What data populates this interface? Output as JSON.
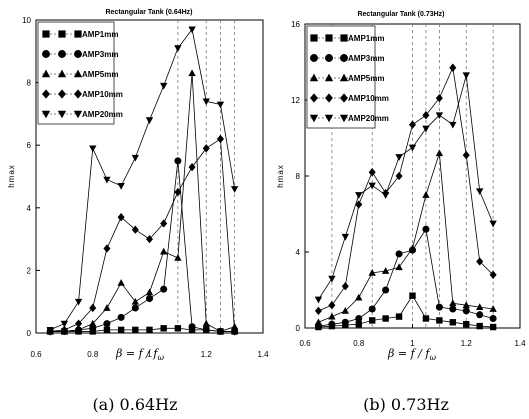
{
  "figure": {
    "captions": [
      "(a)  0.64Hz",
      "(b)  0.73Hz"
    ]
  },
  "chart_data": [
    {
      "type": "line",
      "title": "Rectangular Tank (0.64Hz)",
      "xlabel": "β = f / f",
      "xlabel_sub": "ω",
      "ylabel": "hmax",
      "xlim": [
        0.6,
        1.4
      ],
      "ylim": [
        0,
        10
      ],
      "xticks": [
        "0.6",
        "0.8",
        "1",
        "1.2",
        "1.4"
      ],
      "yticks": [
        "0",
        "2",
        "4",
        "6",
        "8",
        "10"
      ],
      "x": [
        0.65,
        0.7,
        0.75,
        0.8,
        0.85,
        0.9,
        0.95,
        1.0,
        1.05,
        1.1,
        1.15,
        1.2,
        1.25,
        1.3
      ],
      "legend_position": "top-left",
      "series": [
        {
          "name": "AMP1mm",
          "marker": "square",
          "values": [
            0.05,
            0.05,
            0.05,
            0.05,
            0.1,
            0.1,
            0.1,
            0.1,
            0.15,
            0.15,
            0.1,
            0.1,
            0.05,
            0.05
          ]
        },
        {
          "name": "AMP3mm",
          "marker": "circle",
          "values": [
            0.05,
            0.05,
            0.1,
            0.15,
            0.3,
            0.5,
            0.8,
            1.1,
            1.4,
            5.5,
            0.2,
            0.1,
            0.05,
            0.05
          ]
        },
        {
          "name": "AMP5mm",
          "marker": "triangle-up",
          "values": [
            0.05,
            0.05,
            0.1,
            0.3,
            0.8,
            1.6,
            1.0,
            1.3,
            2.6,
            2.4,
            8.3,
            0.3,
            0.05,
            0.2
          ]
        },
        {
          "name": "AMP10mm",
          "marker": "diamond",
          "values": [
            0.05,
            0.1,
            0.3,
            0.8,
            2.7,
            3.7,
            3.3,
            3.0,
            3.5,
            4.5,
            5.3,
            5.9,
            6.2,
            0.05
          ]
        },
        {
          "name": "AMP20mm",
          "marker": "triangle-down",
          "values": [
            0.1,
            0.3,
            1.0,
            5.9,
            4.9,
            4.7,
            5.6,
            6.8,
            7.9,
            9.1,
            9.7,
            7.4,
            7.3,
            4.6
          ]
        }
      ],
      "vlines": [
        1.1,
        1.2,
        1.25,
        1.3
      ]
    },
    {
      "type": "line",
      "title": "Rectangular Tank (0.73Hz)",
      "xlabel": "β = f / f",
      "xlabel_sub": "ω",
      "ylabel": "hmax",
      "xlim": [
        0.6,
        1.4
      ],
      "ylim": [
        0,
        16
      ],
      "xticks": [
        "0.6",
        "0.8",
        "1",
        "1.2",
        "1.4"
      ],
      "yticks": [
        "0",
        "4",
        "8",
        "12",
        "16"
      ],
      "x": [
        0.65,
        0.7,
        0.75,
        0.8,
        0.85,
        0.9,
        0.95,
        1.0,
        1.05,
        1.1,
        1.15,
        1.2,
        1.25,
        1.3
      ],
      "legend_position": "top-left",
      "series": [
        {
          "name": "AMP1mm",
          "marker": "square",
          "values": [
            0.05,
            0.1,
            0.15,
            0.2,
            0.4,
            0.5,
            0.6,
            1.7,
            0.5,
            0.4,
            0.3,
            0.2,
            0.1,
            0.05
          ]
        },
        {
          "name": "AMP3mm",
          "marker": "circle",
          "values": [
            0.1,
            0.2,
            0.3,
            0.5,
            1.0,
            2.0,
            3.9,
            4.1,
            5.2,
            1.1,
            1.0,
            0.9,
            0.7,
            0.5
          ]
        },
        {
          "name": "AMP5mm",
          "marker": "triangle-up",
          "values": [
            0.3,
            0.6,
            0.9,
            1.6,
            2.9,
            3.0,
            3.2,
            4.2,
            7.0,
            9.2,
            1.3,
            1.2,
            1.1,
            1.0
          ]
        },
        {
          "name": "AMP10mm",
          "marker": "diamond",
          "values": [
            0.9,
            1.2,
            2.2,
            6.5,
            8.2,
            7.1,
            8.0,
            10.7,
            11.2,
            12.1,
            13.7,
            9.1,
            3.5,
            2.8
          ]
        },
        {
          "name": "AMP20mm",
          "marker": "triangle-down",
          "values": [
            1.5,
            2.6,
            4.8,
            7.0,
            7.5,
            7.0,
            9.0,
            9.5,
            10.5,
            11.2,
            10.7,
            13.3,
            7.2,
            5.5
          ]
        }
      ],
      "vlines": [
        0.7,
        0.85,
        1.0,
        1.05,
        1.1,
        1.2,
        1.3
      ]
    }
  ]
}
